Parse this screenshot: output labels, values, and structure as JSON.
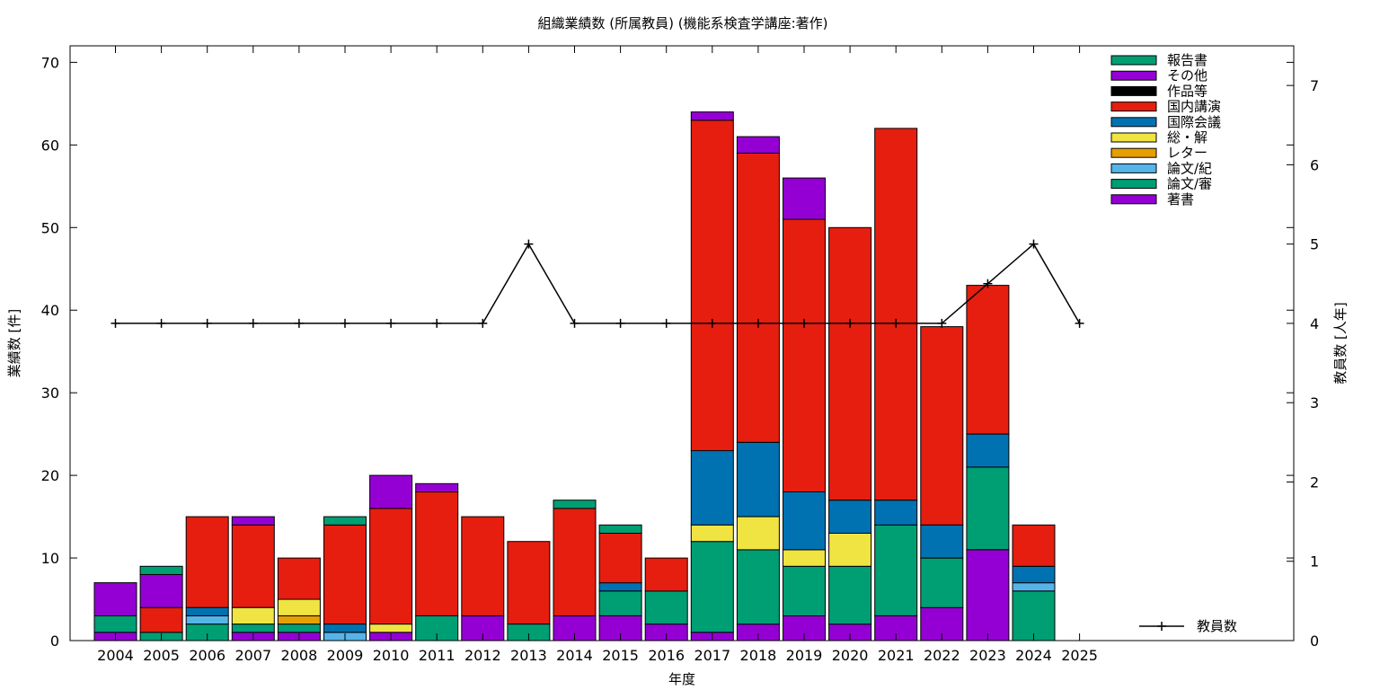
{
  "chart_data": {
    "type": "bar",
    "title": "組織業績数 (所属教員) (機能系検査学講座:著作)",
    "xlabel": "年度",
    "ylabel": "業績数 [件]",
    "y2label": "教員数 [人年]",
    "ylim": [
      0,
      72
    ],
    "y2lim": [
      0,
      7.5
    ],
    "yticks": [
      0,
      10,
      20,
      30,
      40,
      50,
      60,
      70
    ],
    "y2ticks": [
      0,
      1,
      2,
      3,
      4,
      5,
      6,
      7
    ],
    "grid": false,
    "legend_position": "top-right",
    "line_legend_position": "bottom-right",
    "categories": [
      "2004",
      "2005",
      "2006",
      "2007",
      "2008",
      "2009",
      "2010",
      "2011",
      "2012",
      "2013",
      "2014",
      "2015",
      "2016",
      "2017",
      "2018",
      "2019",
      "2020",
      "2021",
      "2022",
      "2023",
      "2024",
      "2025"
    ],
    "series": [
      {
        "name": "著書",
        "color": "#9400d3",
        "values": [
          1,
          0,
          0,
          1,
          1,
          0,
          1,
          0,
          3,
          0,
          3,
          3,
          2,
          1,
          2,
          3,
          2,
          3,
          4,
          11,
          0,
          0
        ]
      },
      {
        "name": "論文/審",
        "color": "#009e73",
        "values": [
          2,
          1,
          2,
          1,
          1,
          0,
          0,
          3,
          0,
          2,
          0,
          3,
          4,
          11,
          9,
          6,
          7,
          11,
          6,
          10,
          6,
          0
        ]
      },
      {
        "name": "論文/紀",
        "color": "#56b4e9",
        "values": [
          0,
          0,
          1,
          0,
          0,
          1,
          0,
          0,
          0,
          0,
          0,
          0,
          0,
          0,
          0,
          0,
          0,
          0,
          0,
          0,
          1,
          0
        ]
      },
      {
        "name": "レター",
        "color": "#e69f00",
        "values": [
          0,
          0,
          0,
          0,
          1,
          0,
          0,
          0,
          0,
          0,
          0,
          0,
          0,
          0,
          0,
          0,
          0,
          0,
          0,
          0,
          0,
          0
        ]
      },
      {
        "name": "総・解",
        "color": "#f0e442",
        "values": [
          0,
          0,
          0,
          2,
          2,
          0,
          1,
          0,
          0,
          0,
          0,
          0,
          0,
          2,
          4,
          2,
          4,
          0,
          0,
          0,
          0,
          0
        ]
      },
      {
        "name": "国際会議",
        "color": "#0072b2",
        "values": [
          0,
          0,
          1,
          0,
          0,
          1,
          0,
          0,
          0,
          0,
          0,
          1,
          0,
          9,
          9,
          7,
          4,
          3,
          4,
          4,
          2,
          0
        ]
      },
      {
        "name": "国内講演",
        "color": "#e51e10",
        "values": [
          0,
          3,
          11,
          10,
          5,
          12,
          14,
          15,
          12,
          10,
          13,
          6,
          4,
          40,
          35,
          33,
          33,
          45,
          24,
          18,
          5,
          0
        ]
      },
      {
        "name": "作品等",
        "color": "#000000",
        "values": [
          0,
          0,
          0,
          0,
          0,
          0,
          0,
          0,
          0,
          0,
          0,
          0,
          0,
          0,
          0,
          0,
          0,
          0,
          0,
          0,
          0,
          0
        ]
      },
      {
        "name": "その他",
        "color": "#9400d3",
        "values": [
          4,
          4,
          0,
          1,
          0,
          0,
          4,
          1,
          0,
          0,
          0,
          0,
          0,
          1,
          2,
          5,
          0,
          0,
          0,
          0,
          0,
          0
        ]
      },
      {
        "name": "報告書",
        "color": "#009e73",
        "values": [
          0,
          1,
          0,
          0,
          0,
          1,
          0,
          0,
          0,
          0,
          1,
          1,
          0,
          0,
          0,
          0,
          0,
          0,
          0,
          0,
          0,
          0
        ]
      }
    ],
    "legend_order": [
      "報告書",
      "その他",
      "作品等",
      "国内講演",
      "国際会議",
      "総・解",
      "レター",
      "論文/紀",
      "論文/審",
      "著書"
    ],
    "line_series": {
      "name": "教員数",
      "color": "#000000",
      "axis": "y2",
      "values": [
        4,
        4,
        4,
        4,
        4,
        4,
        4,
        4,
        4,
        5,
        4,
        4,
        4,
        4,
        4,
        4,
        4,
        4,
        4,
        4.5,
        5,
        4
      ]
    }
  }
}
